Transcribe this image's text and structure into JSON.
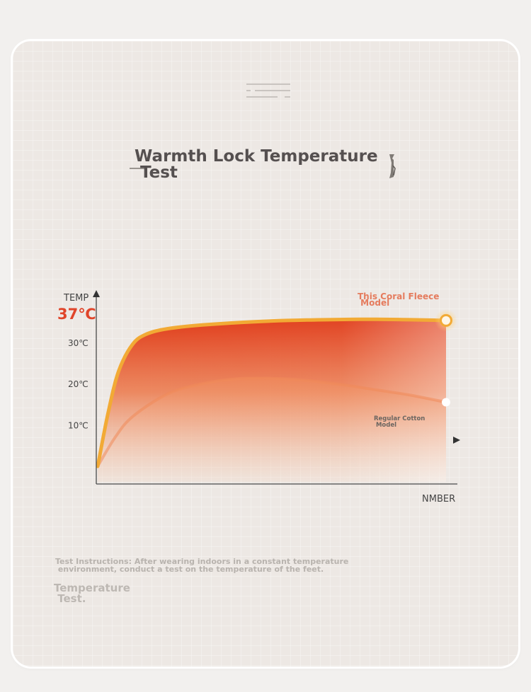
{
  "page": {
    "title": "Warmth Lock Temperature\n Test",
    "instructions": "Test Instructions: After wearing indoors in a constant temperature\n environment, conduct a test on the temperature of the feet.",
    "footer_title": "Temperature\n Test."
  },
  "colors": {
    "accent_red": "#e0452a",
    "curve_orange": "#f2aa35",
    "fill_top": "#e03f1c",
    "cotton_curve": "#f08a5a",
    "label_coral": "#e57c5e",
    "text_dark": "#555050",
    "axis": "#4a4a4a"
  },
  "chart_data": {
    "type": "area",
    "title": "Warmth Lock Temperature Test",
    "xlabel": "NMBER",
    "ylabel": "TEMP",
    "y_ticks": [
      "10℃",
      "20℃",
      "30℃",
      "37℃"
    ],
    "y_tick_values": [
      10,
      20,
      30,
      37
    ],
    "ylim": [
      0,
      40
    ],
    "xlim": [
      0,
      100
    ],
    "grid": false,
    "series": [
      {
        "name": "This Coral Fleece\n Model",
        "x": [
          0,
          3,
          6,
          10,
          14,
          20,
          30,
          45,
          60,
          80,
          100
        ],
        "values": [
          0,
          13,
          23,
          29.5,
          32,
          33.3,
          34.2,
          35,
          35.4,
          35.6,
          35.3
        ]
      },
      {
        "name": "Regular Cotton\n Model",
        "x": [
          0,
          5,
          10,
          20,
          30,
          40,
          50,
          60,
          70,
          80,
          90,
          100
        ],
        "values": [
          0,
          7,
          12,
          17.5,
          20,
          21.2,
          21.3,
          20.8,
          19.8,
          18.5,
          17.2,
          15.5
        ]
      }
    ]
  }
}
